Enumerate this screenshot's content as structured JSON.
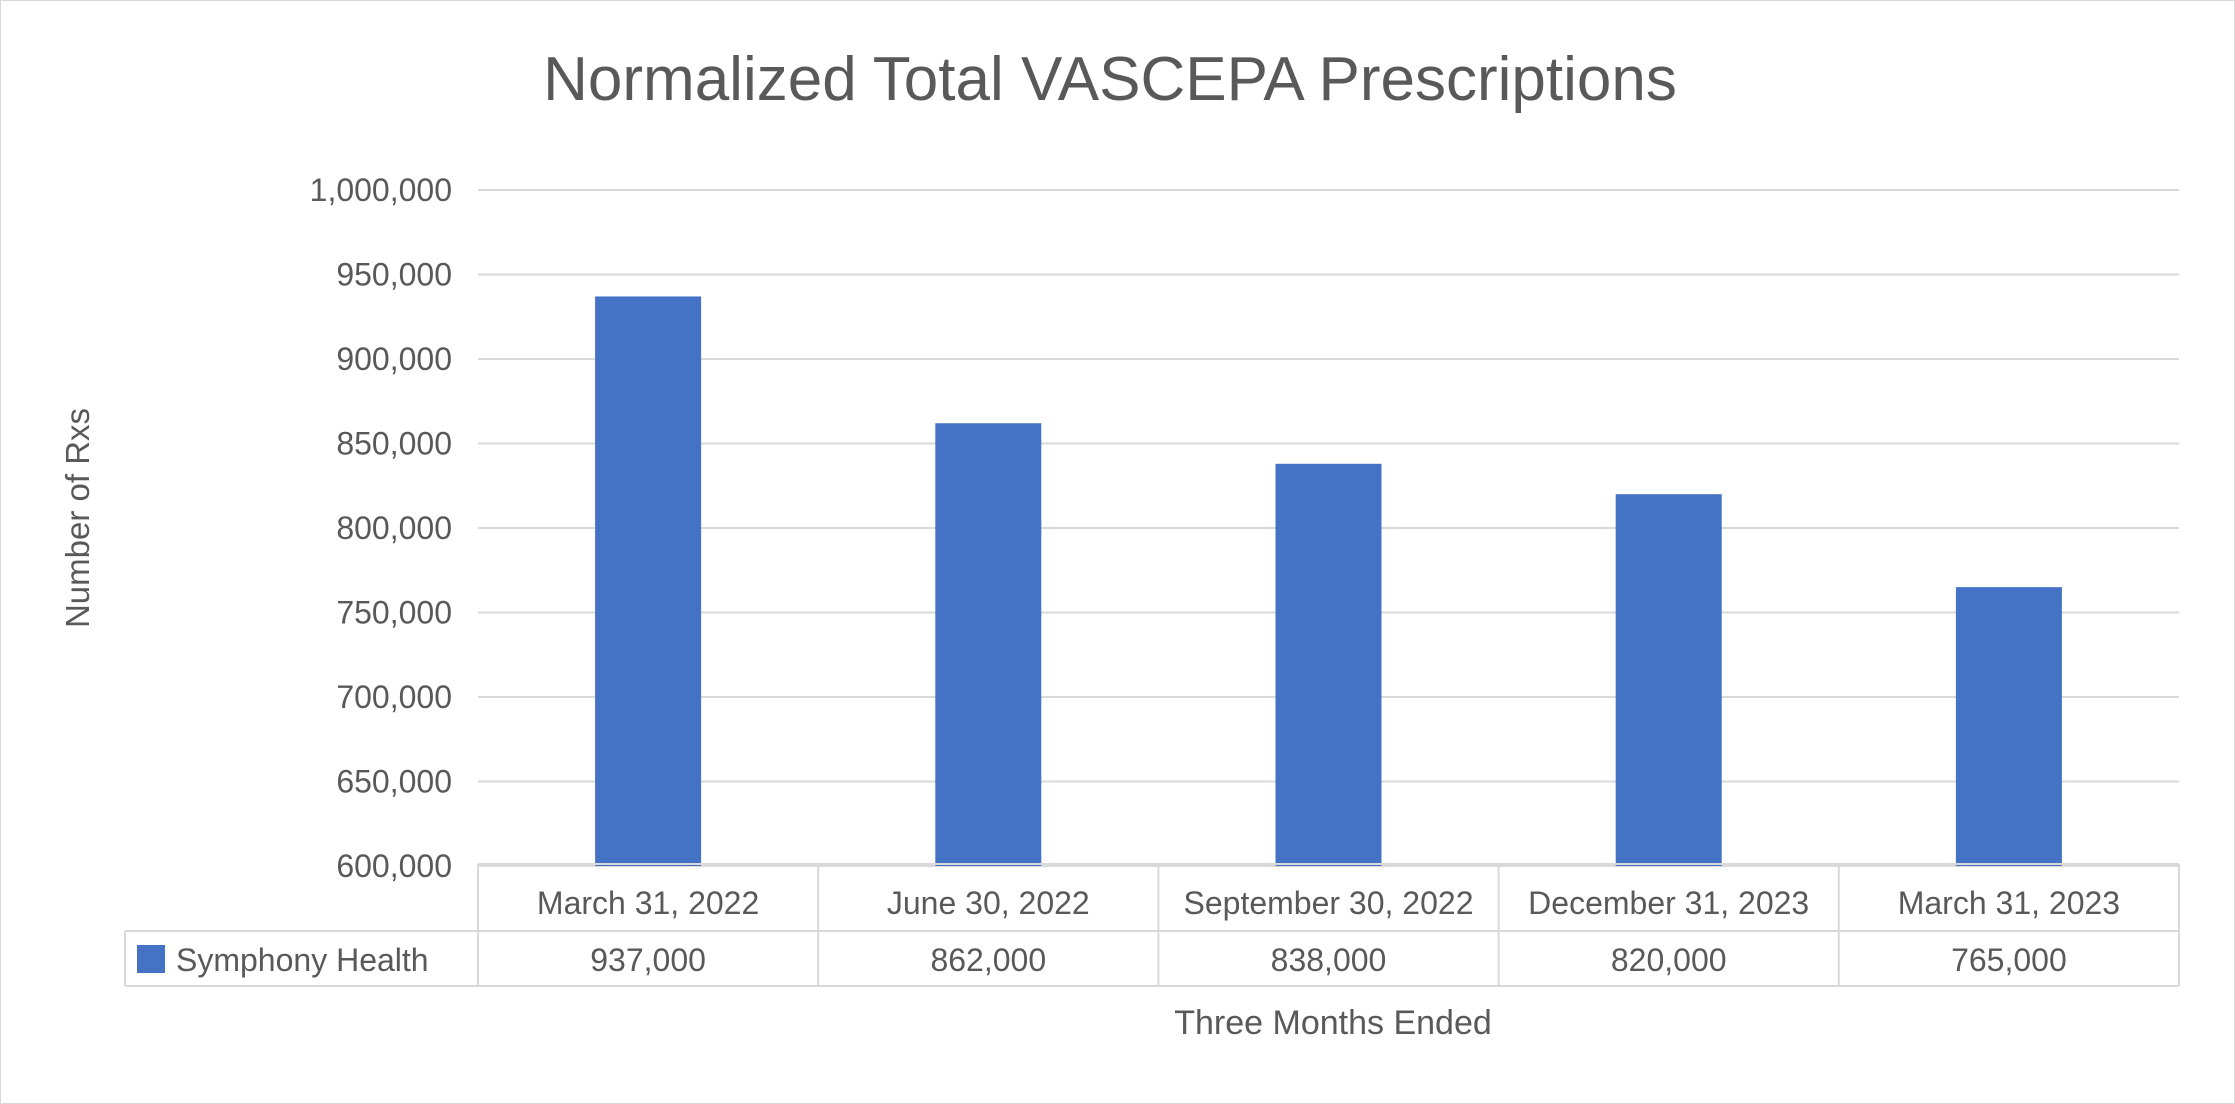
{
  "chart_data": {
    "type": "bar",
    "title": "Normalized Total VASCEPA Prescriptions",
    "xlabel": "Three Months Ended",
    "ylabel": "Number of Rxs",
    "categories": [
      "March 31, 2022",
      "June 30, 2022",
      "September 30, 2022",
      "December 31, 2023",
      "March 31, 2023"
    ],
    "series": [
      {
        "name": "Symphony Health",
        "values": [
          937000,
          862000,
          838000,
          820000,
          765000
        ],
        "value_labels": [
          "937,000",
          "862,000",
          "838,000",
          "820,000",
          "765,000"
        ]
      }
    ],
    "ylim": [
      600000,
      1000000
    ],
    "yticks": [
      600000,
      650000,
      700000,
      750000,
      800000,
      850000,
      900000,
      950000,
      1000000
    ],
    "ytick_labels": [
      "600,000",
      "650,000",
      "700,000",
      "750,000",
      "800,000",
      "850,000",
      "900,000",
      "950,000",
      "1,000,000"
    ],
    "grid": true,
    "legend": "data-table",
    "bar_color": "#4472C4",
    "grid_color": "#d9d9d9",
    "text_color": "#595959"
  }
}
